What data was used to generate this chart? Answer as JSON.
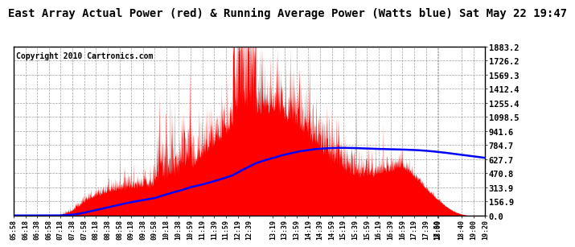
{
  "title": "East Array Actual Power (red) & Running Average Power (Watts blue) Sat May 22 19:47",
  "copyright": "Copyright 2010 Cartronics.com",
  "yticks": [
    0.0,
    156.9,
    313.9,
    470.8,
    627.7,
    784.7,
    941.6,
    1098.5,
    1255.4,
    1412.4,
    1569.3,
    1726.2,
    1883.2
  ],
  "ymax": 1883.2,
  "ymin": 0.0,
  "bar_color": "#FF0000",
  "avg_color": "#0000FF",
  "bg_color": "#FFFFFF",
  "plot_bg": "#FFFFFF",
  "grid_color": "#888888",
  "title_fontsize": 10,
  "copyright_fontsize": 7,
  "xtick_fontsize": 6.0,
  "ytick_fontsize": 7.5,
  "xtick_labels": [
    "05:58",
    "06:18",
    "06:38",
    "06:58",
    "07:18",
    "07:38",
    "07:58",
    "08:18",
    "08:38",
    "08:58",
    "09:18",
    "09:38",
    "09:58",
    "10:18",
    "10:38",
    "10:59",
    "11:19",
    "11:39",
    "11:59",
    "12:19",
    "12:39",
    "13:19",
    "13:39",
    "13:59",
    "14:19",
    "14:39",
    "14:59",
    "15:19",
    "15:39",
    "15:59",
    "16:19",
    "16:39",
    "16:59",
    "17:19",
    "17:39",
    "17:59",
    "18:00",
    "18:40",
    "19:00",
    "19:20"
  ]
}
